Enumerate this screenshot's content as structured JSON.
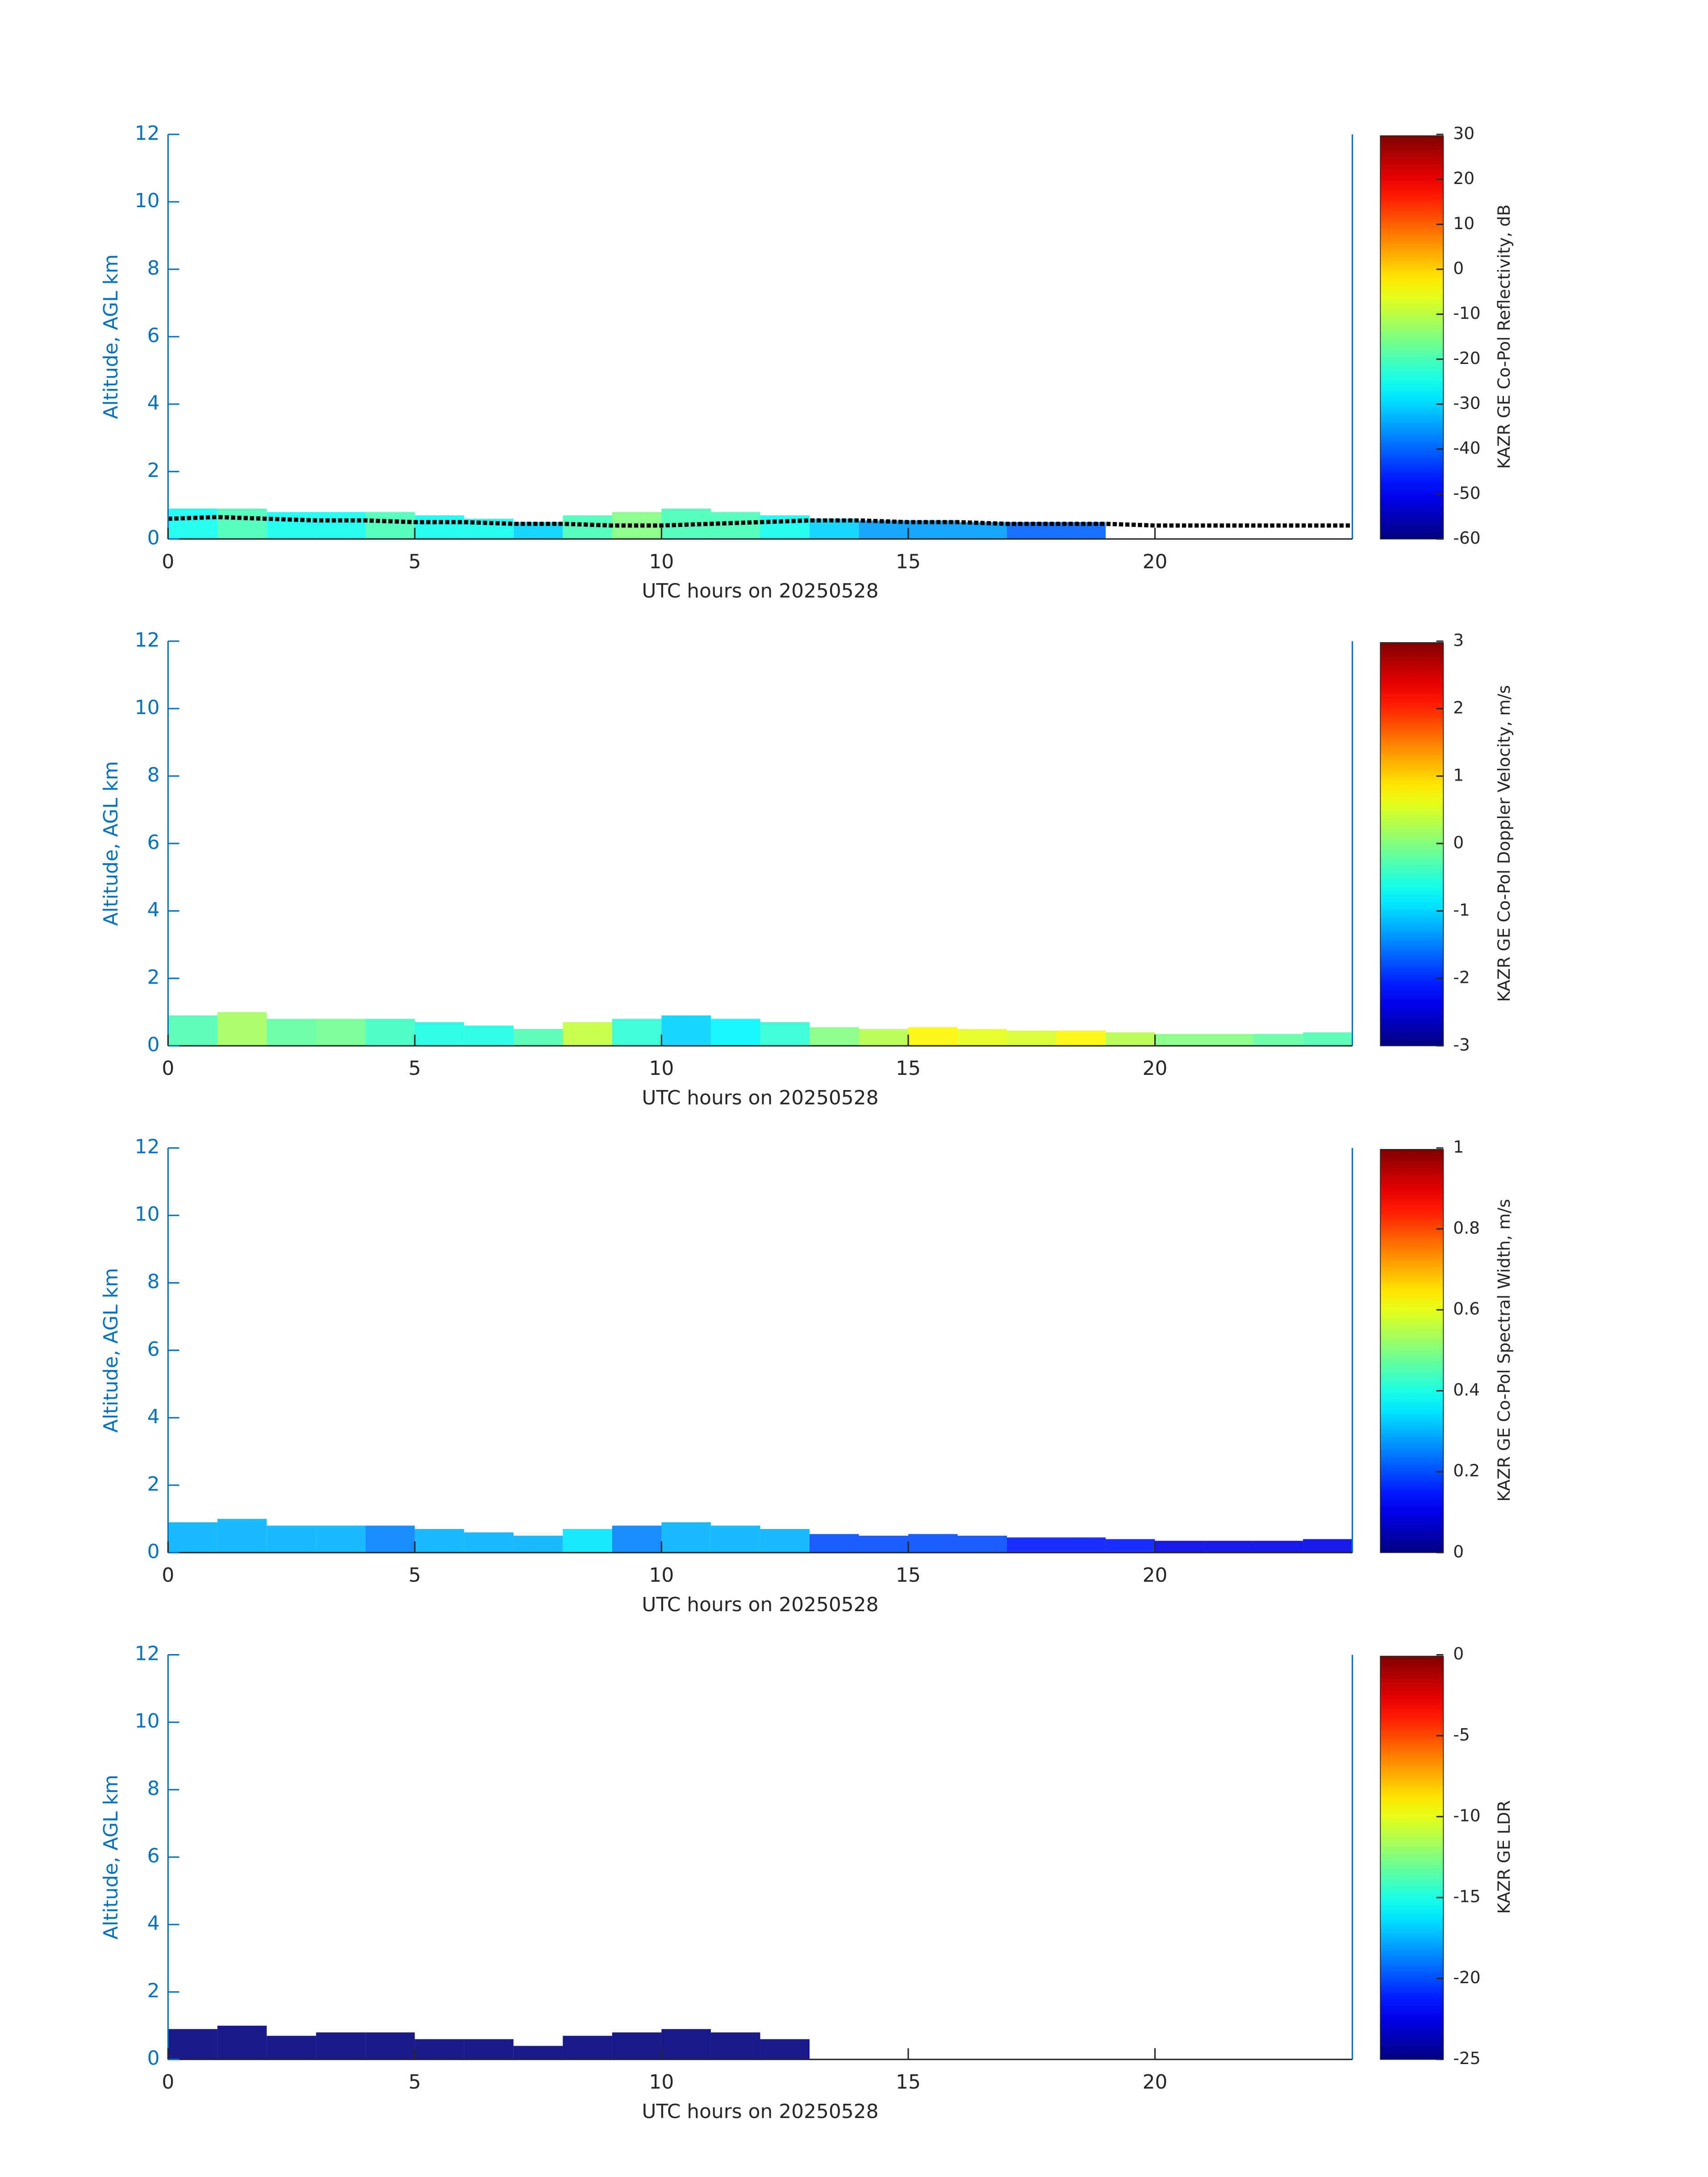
{
  "chart_data": [
    {
      "type": "heatmap",
      "xlabel": "UTC hours on 20250528",
      "ylabel": "Altitude, AGL km",
      "colorbar_label": "KAZR GE Co-Pol Reflectivity, dB",
      "colormap": "jet",
      "xlim": [
        0,
        24
      ],
      "xticks": [
        0,
        5,
        10,
        15,
        20
      ],
      "ylim": [
        0,
        12
      ],
      "yticks": [
        0,
        2,
        4,
        6,
        8,
        10,
        12
      ],
      "clim": [
        -60,
        30
      ],
      "cticks": [
        -60,
        -50,
        -40,
        -30,
        -20,
        -10,
        0,
        10,
        20,
        30
      ],
      "x": [
        0,
        1,
        2,
        3,
        4,
        5,
        6,
        7,
        8,
        9,
        10,
        11,
        12,
        13,
        14,
        15,
        16,
        17,
        18,
        19,
        20,
        21,
        22,
        23
      ],
      "tops": [
        0.9,
        0.9,
        0.8,
        0.8,
        0.8,
        0.7,
        0.6,
        0.5,
        0.7,
        0.8,
        0.9,
        0.8,
        0.7,
        0.6,
        0.55,
        0.55,
        0.5,
        0.5,
        0.5,
        null,
        null,
        null,
        null,
        null
      ],
      "values": [
        -25,
        -20,
        -25,
        -25,
        -20,
        -25,
        -25,
        -30,
        -20,
        -15,
        -20,
        -20,
        -25,
        -30,
        -35,
        -35,
        -35,
        -40,
        -40,
        null,
        null,
        null,
        null,
        null
      ],
      "line_x": [
        0,
        1,
        2,
        3,
        4,
        5,
        6,
        7,
        8,
        9,
        10,
        11,
        12,
        13,
        14,
        15,
        16,
        17,
        18,
        19,
        20,
        21,
        22,
        23,
        24
      ],
      "line": [
        0.6,
        0.65,
        0.6,
        0.55,
        0.55,
        0.5,
        0.5,
        0.45,
        0.45,
        0.4,
        0.4,
        0.45,
        0.5,
        0.55,
        0.55,
        0.5,
        0.5,
        0.45,
        0.45,
        0.45,
        0.4,
        0.4,
        0.4,
        0.4,
        0.4
      ],
      "line_color": "#000000"
    },
    {
      "type": "heatmap",
      "xlabel": "UTC hours on 20250528",
      "ylabel": "Altitude, AGL km",
      "colorbar_label": "KAZR GE Co-Pol Doppler Velocity, m/s",
      "colormap": "jet",
      "xlim": [
        0,
        24
      ],
      "xticks": [
        0,
        5,
        10,
        15,
        20
      ],
      "ylim": [
        0,
        12
      ],
      "yticks": [
        0,
        2,
        4,
        6,
        8,
        10,
        12
      ],
      "clim": [
        -3,
        3
      ],
      "cticks": [
        -3,
        -2,
        -1,
        0,
        1,
        2,
        3
      ],
      "x": [
        0,
        1,
        2,
        3,
        4,
        5,
        6,
        7,
        8,
        9,
        10,
        11,
        12,
        13,
        14,
        15,
        16,
        17,
        18,
        19,
        20,
        21,
        22,
        23
      ],
      "tops": [
        0.9,
        1.0,
        0.8,
        0.8,
        0.8,
        0.7,
        0.6,
        0.5,
        0.7,
        0.8,
        0.9,
        0.8,
        0.7,
        0.55,
        0.5,
        0.55,
        0.5,
        0.45,
        0.45,
        0.4,
        0.35,
        0.35,
        0.35,
        0.4
      ],
      "values": [
        -0.3,
        0.2,
        -0.2,
        -0.1,
        -0.4,
        -0.6,
        -0.6,
        -0.3,
        0.4,
        -0.5,
        -1.0,
        -0.8,
        -0.5,
        0,
        0.3,
        0.8,
        0.6,
        0.5,
        0.8,
        0.3,
        0,
        0,
        -0.2,
        -0.3
      ]
    },
    {
      "type": "heatmap",
      "xlabel": "UTC hours on 20250528",
      "ylabel": "Altitude, AGL km",
      "colorbar_label": "KAZR GE Co-Pol Spectral Width, m/s",
      "colormap": "jet",
      "xlim": [
        0,
        24
      ],
      "xticks": [
        0,
        5,
        10,
        15,
        20
      ],
      "ylim": [
        0,
        12
      ],
      "yticks": [
        0,
        2,
        4,
        6,
        8,
        10,
        12
      ],
      "clim": [
        0,
        1
      ],
      "cticks": [
        0,
        0.2,
        0.4,
        0.6,
        0.8,
        1
      ],
      "x": [
        0,
        1,
        2,
        3,
        4,
        5,
        6,
        7,
        8,
        9,
        10,
        11,
        12,
        13,
        14,
        15,
        16,
        17,
        18,
        19,
        20,
        21,
        22,
        23
      ],
      "tops": [
        0.9,
        1.0,
        0.8,
        0.8,
        0.8,
        0.7,
        0.6,
        0.5,
        0.7,
        0.8,
        0.9,
        0.8,
        0.7,
        0.55,
        0.5,
        0.55,
        0.5,
        0.45,
        0.45,
        0.4,
        0.35,
        0.35,
        0.35,
        0.4
      ],
      "values": [
        0.3,
        0.3,
        0.3,
        0.3,
        0.25,
        0.3,
        0.3,
        0.3,
        0.35,
        0.25,
        0.3,
        0.3,
        0.3,
        0.2,
        0.2,
        0.2,
        0.2,
        0.15,
        0.15,
        0.15,
        0.1,
        0.1,
        0.1,
        0.1
      ]
    },
    {
      "type": "heatmap",
      "xlabel": "UTC hours on 20250528",
      "ylabel": "Altitude, AGL km",
      "colorbar_label": "KAZR GE LDR",
      "colormap": "jet",
      "xlim": [
        0,
        24
      ],
      "xticks": [
        0,
        5,
        10,
        15,
        20
      ],
      "ylim": [
        0,
        12
      ],
      "yticks": [
        0,
        2,
        4,
        6,
        8,
        10,
        12
      ],
      "clim": [
        -25,
        0
      ],
      "cticks": [
        -25,
        -20,
        -15,
        -10,
        -5,
        0
      ],
      "x": [
        0,
        1,
        2,
        3,
        4,
        5,
        6,
        7,
        8,
        9,
        10,
        11,
        12,
        13,
        14,
        15,
        16,
        17,
        18,
        19,
        20,
        21,
        22,
        23
      ],
      "tops": [
        0.9,
        1.0,
        0.7,
        0.8,
        0.8,
        0.6,
        0.6,
        0.4,
        0.7,
        0.8,
        0.9,
        0.8,
        0.6,
        null,
        null,
        null,
        null,
        null,
        null,
        null,
        null,
        null,
        null,
        null
      ],
      "values": [
        -25,
        -25,
        -25,
        -25,
        -25,
        -25,
        -25,
        -25,
        -25,
        -25,
        -25,
        -25,
        -25,
        null,
        null,
        null,
        null,
        null,
        null,
        null,
        null,
        null,
        null,
        null
      ]
    }
  ]
}
